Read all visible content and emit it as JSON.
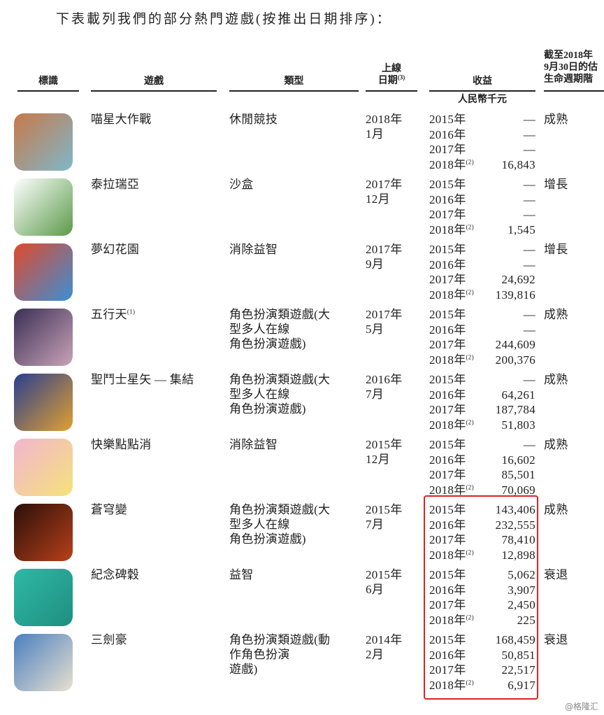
{
  "intro": "下表載列我們的部分熱門遊戲(按推出日期排序)：",
  "headers": {
    "logo": "標識",
    "game": "遊戲",
    "genre": "類型",
    "launch_line1": "上線",
    "launch_line2": "日期",
    "launch_note": "(3)",
    "revenue": "收益",
    "revenue_unit": "人民幣千元",
    "stage_line1": "截至2018年",
    "stage_line2": "9月30日的估",
    "stage_line3": "生命週期階"
  },
  "rows": [
    {
      "name": "喵星大作戰",
      "note": "",
      "genre": [
        "休閒競技"
      ],
      "date": [
        "2018年",
        "1月"
      ],
      "revenue": [
        [
          "2015年",
          "",
          "—"
        ],
        [
          "2016年",
          "",
          "—"
        ],
        [
          "2017年",
          "",
          "—"
        ],
        [
          "2018年",
          "(2)",
          "16,843"
        ]
      ],
      "stage": "成熟",
      "icon_colors": [
        "#c8794a",
        "#7fb7c9"
      ]
    },
    {
      "name": "泰拉瑞亞",
      "note": "",
      "genre": [
        "沙盒"
      ],
      "date": [
        "2017年",
        "12月"
      ],
      "revenue": [
        [
          "2015年",
          "",
          "—"
        ],
        [
          "2016年",
          "",
          "—"
        ],
        [
          "2017年",
          "",
          "—"
        ],
        [
          "2018年",
          "(2)",
          "1,545"
        ]
      ],
      "stage": "增長",
      "icon_colors": [
        "#ffffff",
        "#5b9a4a"
      ]
    },
    {
      "name": "夢幻花園",
      "note": "",
      "genre": [
        "消除益智"
      ],
      "date": [
        "2017年",
        "9月"
      ],
      "revenue": [
        [
          "2015年",
          "",
          "—"
        ],
        [
          "2016年",
          "",
          "—"
        ],
        [
          "2017年",
          "",
          "24,692"
        ],
        [
          "2018年",
          "(2)",
          "139,816"
        ]
      ],
      "stage": "增長",
      "icon_colors": [
        "#e04a2a",
        "#3b8fd6"
      ]
    },
    {
      "name": "五行天",
      "note": "(1)",
      "genre": [
        "角色扮演類遊戲(大",
        "型多人在線",
        "角色扮演遊戲)"
      ],
      "date": [
        "2017年",
        "5月"
      ],
      "revenue": [
        [
          "2015年",
          "",
          "—"
        ],
        [
          "2016年",
          "",
          "—"
        ],
        [
          "2017年",
          "",
          "244,609"
        ],
        [
          "2018年",
          "(2)",
          "200,376"
        ]
      ],
      "stage": "成熟",
      "icon_colors": [
        "#3a2f55",
        "#c9a3b8"
      ]
    },
    {
      "name": "聖鬥士星矢 — 集結",
      "note": "",
      "genre": [
        "角色扮演類遊戲(大",
        "型多人在線",
        "角色扮演遊戲)"
      ],
      "date": [
        "2016年",
        "7月"
      ],
      "revenue": [
        [
          "2015年",
          "",
          "—"
        ],
        [
          "2016年",
          "",
          "64,261"
        ],
        [
          "2017年",
          "",
          "187,784"
        ],
        [
          "2018年",
          "(2)",
          "51,803"
        ]
      ],
      "stage": "成熟",
      "icon_colors": [
        "#2a3f8f",
        "#e0a030"
      ]
    },
    {
      "name": "快樂點點消",
      "note": "",
      "genre": [
        "消除益智"
      ],
      "date": [
        "2015年",
        "12月"
      ],
      "revenue": [
        [
          "2015年",
          "",
          "—"
        ],
        [
          "2016年",
          "",
          "16,602"
        ],
        [
          "2017年",
          "",
          "85,501"
        ],
        [
          "2018年",
          "(2)",
          "70,069"
        ]
      ],
      "stage": "成熟",
      "icon_colors": [
        "#f2b5d0",
        "#f5e27a"
      ]
    },
    {
      "name": "蒼穹變",
      "note": "",
      "genre": [
        "角色扮演類遊戲(大",
        "型多人在線",
        "角色扮演遊戲)"
      ],
      "date": [
        "2015年",
        "7月"
      ],
      "revenue": [
        [
          "2015年",
          "",
          "143,406"
        ],
        [
          "2016年",
          "",
          "232,555"
        ],
        [
          "2017年",
          "",
          "78,410"
        ],
        [
          "2018年",
          "(2)",
          "12,898"
        ]
      ],
      "stage": "成熟",
      "icon_colors": [
        "#2a0f0a",
        "#b8401a"
      ]
    },
    {
      "name": "紀念碑穀",
      "note": "",
      "genre": [
        "益智"
      ],
      "date": [
        "2015年",
        "6月"
      ],
      "revenue": [
        [
          "2015年",
          "",
          "5,062"
        ],
        [
          "2016年",
          "",
          "3,907"
        ],
        [
          "2017年",
          "",
          "2,450"
        ],
        [
          "2018年",
          "(2)",
          "225"
        ]
      ],
      "stage": "衰退",
      "icon_colors": [
        "#2fb8a5",
        "#1f8f80"
      ]
    },
    {
      "name": "三劍豪",
      "note": "",
      "genre": [
        "角色扮演類遊戲(動",
        "作角色扮演",
        "遊戲)"
      ],
      "date": [
        "2014年",
        "2月"
      ],
      "revenue": [
        [
          "2015年",
          "",
          "168,459"
        ],
        [
          "2016年",
          "",
          "50,851"
        ],
        [
          "2017年",
          "",
          "22,517"
        ],
        [
          "2018年",
          "(2)",
          "6,917"
        ]
      ],
      "stage": "衰退",
      "icon_colors": [
        "#4a7fc0",
        "#e8e0d0"
      ]
    }
  ],
  "highlight_color": "#e02020",
  "watermark": "@格隆汇"
}
